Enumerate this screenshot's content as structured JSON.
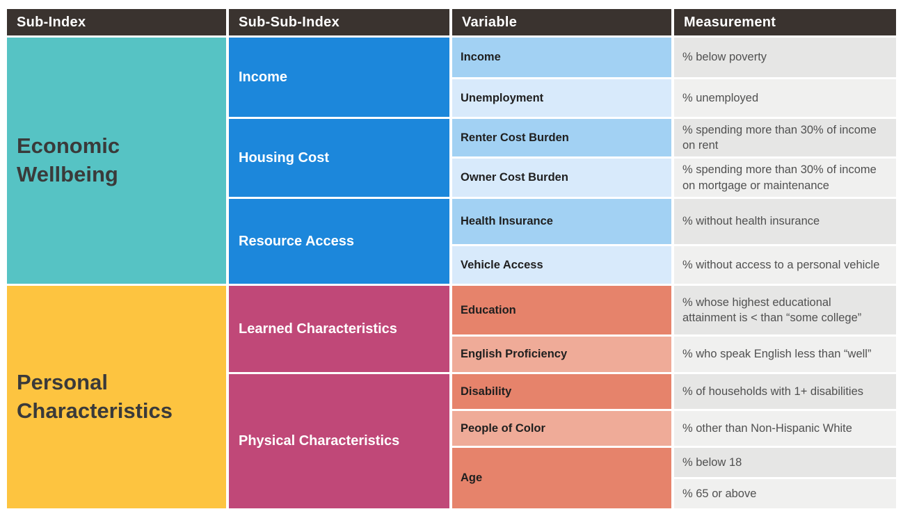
{
  "colors": {
    "header_bg": "#3A332F",
    "teal": "#56C3C4",
    "yellow": "#FDC440",
    "blue": "#1C87DB",
    "magenta": "#C04878",
    "blue_light": "#A2D1F3",
    "blue_lighter": "#D8EAFB",
    "salmon": "#E6836B",
    "salmon_light": "#EFAB98",
    "gray_dark": "#E6E6E5",
    "gray_light": "#F0F0EF",
    "page_bg": "#FFFFFF"
  },
  "header": {
    "columns": [
      "Sub-Index",
      "Sub-Sub-Index",
      "Variable",
      "Measurement"
    ]
  },
  "economic": {
    "label": "Economic Wellbeing",
    "groups": [
      {
        "label": "Income",
        "rows": [
          {
            "variable": "Income",
            "measurement": "% below poverty"
          },
          {
            "variable": "Unemployment",
            "measurement": "% unemployed"
          }
        ]
      },
      {
        "label": "Housing Cost",
        "rows": [
          {
            "variable": "Renter Cost Burden",
            "measurement": "% spending more than 30% of income on rent"
          },
          {
            "variable": "Owner Cost Burden",
            "measurement": "% spending more than 30% of income on mortgage or maintenance"
          }
        ]
      },
      {
        "label": "Resource Access",
        "rows": [
          {
            "variable": "Health Insurance",
            "measurement": "% without health insurance"
          },
          {
            "variable": "Vehicle Access",
            "measurement": "% without access to a personal vehicle"
          }
        ]
      }
    ]
  },
  "personal": {
    "label": "Personal Characteristics",
    "groups": [
      {
        "label": "Learned Characteristics",
        "rows": [
          {
            "variable": "Education",
            "measurement": "% whose highest educational attainment is < than “some college”"
          },
          {
            "variable": "English Proficiency",
            "measurement": "% who speak English less than “well”"
          }
        ]
      },
      {
        "label": "Physical Characteristics",
        "rows": [
          {
            "variable": "Disability",
            "measurement": "% of households with 1+ disabilities"
          },
          {
            "variable": "People of Color",
            "measurement": "% other than Non-Hispanic White"
          },
          {
            "variable": "Age",
            "measurements": [
              "% below 18",
              "% 65 or above"
            ]
          }
        ]
      }
    ]
  }
}
